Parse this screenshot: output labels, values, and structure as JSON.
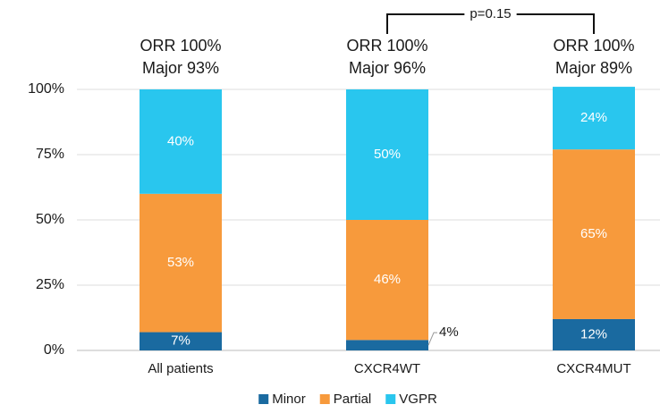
{
  "chart_data": {
    "type": "stacked_bar",
    "categories": [
      "All patients",
      "CXCR4WT",
      "CXCR4MUT"
    ],
    "series": [
      {
        "name": "Minor",
        "color": "#1a6aa0",
        "values": [
          7,
          4,
          12
        ],
        "value_labels": [
          "7%",
          "4%",
          "12%"
        ]
      },
      {
        "name": "Partial",
        "color": "#f79a3c",
        "values": [
          53,
          46,
          65
        ],
        "value_labels": [
          "53%",
          "46%",
          "65%"
        ]
      },
      {
        "name": "VGPR",
        "color": "#29c6ee",
        "values": [
          40,
          50,
          24
        ],
        "value_labels": [
          "40%",
          "50%",
          "24%"
        ]
      }
    ],
    "annotations": [
      [
        "ORR 100%",
        "Major 93%"
      ],
      [
        "ORR 100%",
        "Major 96%"
      ],
      [
        "ORR 100%",
        "Major 89%"
      ]
    ],
    "bracket_label": "p=0.15",
    "ylim": [
      0,
      100
    ],
    "yticks": [
      {
        "value": 0,
        "label": "0%"
      },
      {
        "value": 25,
        "label": "25%"
      },
      {
        "value": 50,
        "label": "50%"
      },
      {
        "value": 75,
        "label": "75%"
      },
      {
        "value": 100,
        "label": "100%"
      }
    ],
    "grid": true
  }
}
